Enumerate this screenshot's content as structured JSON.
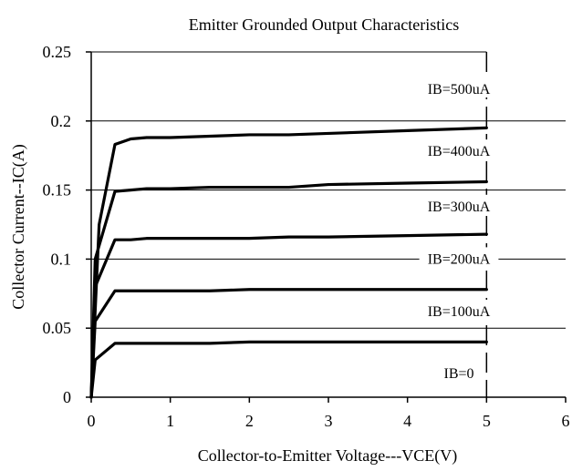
{
  "chart_data": {
    "type": "line",
    "title": "Emitter Grounded Output Characteristics",
    "xlabel": "Collector-to-Emitter Voltage---VCE(V)",
    "ylabel": "Collector Current--IC(A)",
    "xlim": [
      0,
      6
    ],
    "ylim": [
      0,
      0.25
    ],
    "x_ticks": [
      0,
      1,
      2,
      3,
      4,
      5,
      6
    ],
    "y_ticks": [
      0,
      0.05,
      0.1,
      0.15,
      0.2,
      0.25
    ],
    "x_tick_labels": [
      "0",
      "1",
      "2",
      "3",
      "4",
      "5",
      "6"
    ],
    "y_tick_labels": [
      "0",
      "0.05",
      "0.1",
      "0.15",
      "0.2",
      "0.25"
    ],
    "grid": true,
    "series": [
      {
        "name": "IB=0",
        "x": [
          0,
          0.05,
          0.3,
          0.5,
          1.0,
          1.5,
          2.0,
          2.5,
          3.0,
          4.0,
          5.0
        ],
        "values": [
          0,
          0.027,
          0.039,
          0.039,
          0.039,
          0.039,
          0.04,
          0.04,
          0.04,
          0.04,
          0.04
        ]
      },
      {
        "name": "IB=100uA",
        "x": [
          0,
          0.05,
          0.3,
          0.5,
          1.0,
          1.5,
          2.0,
          2.5,
          3.0,
          4.0,
          5.0
        ],
        "values": [
          0,
          0.055,
          0.077,
          0.077,
          0.077,
          0.077,
          0.078,
          0.078,
          0.078,
          0.078,
          0.078
        ]
      },
      {
        "name": "IB=200uA",
        "x": [
          0,
          0.05,
          0.3,
          0.5,
          0.7,
          1.0,
          1.5,
          2.0,
          2.5,
          3.0,
          4.0,
          5.0
        ],
        "values": [
          0,
          0.08,
          0.114,
          0.114,
          0.115,
          0.115,
          0.115,
          0.115,
          0.116,
          0.116,
          0.117,
          0.118
        ]
      },
      {
        "name": "IB=300uA",
        "x": [
          0,
          0.05,
          0.3,
          0.5,
          0.7,
          1.0,
          1.5,
          2.0,
          2.5,
          3.0,
          4.0,
          5.0
        ],
        "values": [
          0,
          0.1,
          0.149,
          0.15,
          0.151,
          0.151,
          0.152,
          0.152,
          0.152,
          0.154,
          0.155,
          0.156
        ]
      },
      {
        "name": "IB=400uA",
        "x": [
          0,
          0.1,
          0.3,
          0.5,
          0.7,
          1.0,
          1.5,
          2.0,
          2.5,
          3.0,
          4.0,
          5.0
        ],
        "values": [
          0,
          0.125,
          0.183,
          0.187,
          0.188,
          0.188,
          0.189,
          0.19,
          0.19,
          0.191,
          0.193,
          0.195
        ]
      }
    ],
    "annotations": [
      {
        "text": "IB=500uA",
        "x": 4.65,
        "y": 0.223
      },
      {
        "text": "IB=400uA",
        "x": 4.65,
        "y": 0.178
      },
      {
        "text": "IB=300uA",
        "x": 4.65,
        "y": 0.138
      },
      {
        "text": "IB=200uA",
        "x": 4.65,
        "y": 0.1
      },
      {
        "text": "IB=100uA",
        "x": 4.65,
        "y": 0.062
      },
      {
        "text": "IB=0",
        "x": 4.65,
        "y": 0.017
      }
    ],
    "colors": {
      "line": "#000000",
      "grid": "#000000",
      "axis": "#000000",
      "background": "#ffffff"
    }
  }
}
